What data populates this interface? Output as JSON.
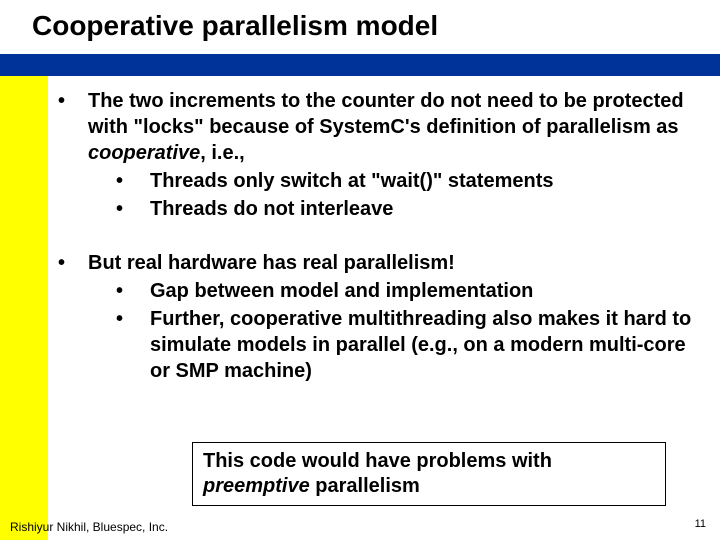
{
  "title": "Cooperative parallelism model",
  "colors": {
    "blue_band": "#003399",
    "yellow_band": "#ffff00",
    "background": "#ffffff",
    "text": "#000000"
  },
  "bullets": [
    {
      "text_pre": "The two increments to the counter do not need to be protected with \"locks\" because of SystemC's definition of parallelism as ",
      "text_italic": "cooperative",
      "text_post": ", i.e.,",
      "subs": [
        "Threads only switch at \"wait()\" statements",
        "Threads do not interleave"
      ]
    },
    {
      "text_pre": "But real hardware has real parallelism!",
      "text_italic": "",
      "text_post": "",
      "subs": [
        "Gap between model and implementation",
        "Further, cooperative multithreading also makes it hard to simulate models in parallel (e.g., on a modern multi-core or SMP machine)"
      ]
    }
  ],
  "callout_pre": "This code would have problems with ",
  "callout_italic": "preemptive",
  "callout_post": " parallelism",
  "footer": "Rishiyur Nikhil, Bluespec, Inc.",
  "page_number": "11"
}
